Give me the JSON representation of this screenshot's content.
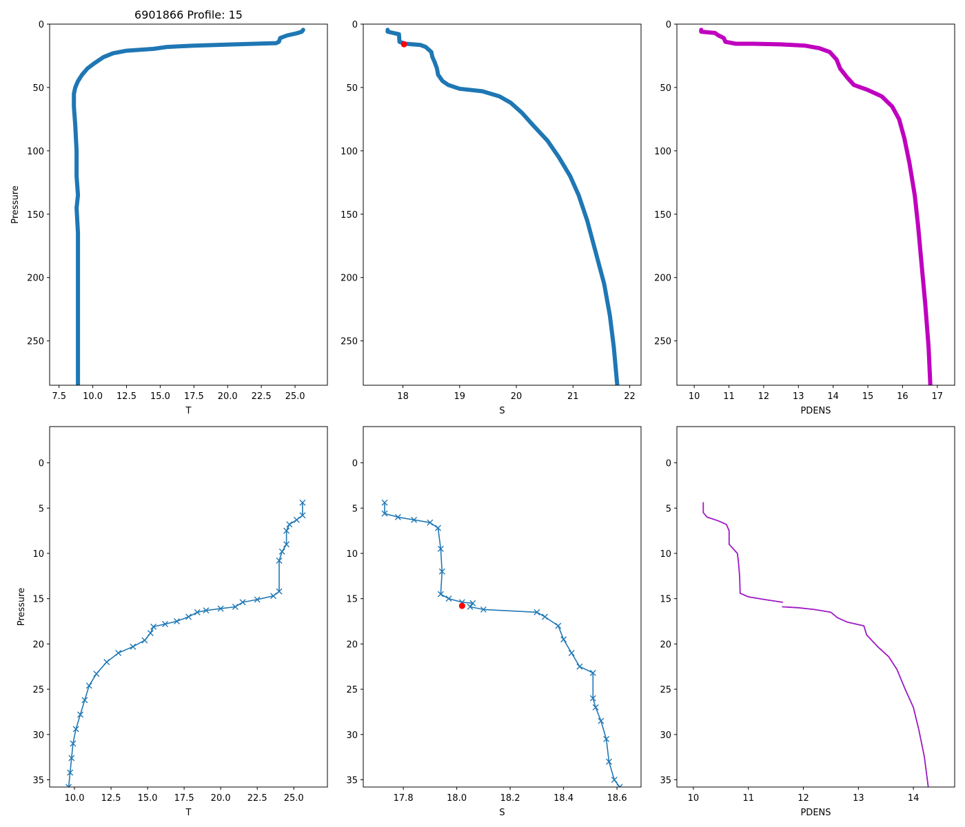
{
  "figure_title": "6901866 Profile: 15",
  "colors": {
    "series": "#1f77b4",
    "pdens": "#bf00bf",
    "pdens_fit": "#5a45c8",
    "marker": "#ff0000",
    "axes": "#000000"
  },
  "chart_data": [
    {
      "type": "line",
      "xlabel": "T",
      "ylabel": "Pressure",
      "title": "6901866 Profile: 15",
      "xlim": [
        6.8,
        27.4
      ],
      "ylim": [
        285,
        0
      ],
      "xticks": [
        7.5,
        10.0,
        12.5,
        15.0,
        17.5,
        20.0,
        22.5,
        25.0
      ],
      "xticklabels": [
        "7.5",
        "10.0",
        "12.5",
        "15.0",
        "17.5",
        "20.0",
        "22.5",
        "25.0"
      ],
      "yticks": [
        0,
        50,
        100,
        150,
        200,
        250
      ],
      "yticklabels": [
        "0",
        "50",
        "100",
        "150",
        "200",
        "250"
      ],
      "series": [
        {
          "name": "T",
          "style": "x-line",
          "color": "#1f77b4",
          "width": 6,
          "points": [
            [
              25.6,
              4.5
            ],
            [
              25.5,
              6
            ],
            [
              25.2,
              7
            ],
            [
              24.4,
              9
            ],
            [
              23.9,
              11
            ],
            [
              23.8,
              14
            ],
            [
              23.6,
              15
            ],
            [
              22,
              15.5
            ],
            [
              20.5,
              16
            ],
            [
              17.5,
              17
            ],
            [
              15.5,
              18
            ],
            [
              14.5,
              19.5
            ],
            [
              12.5,
              21
            ],
            [
              11.5,
              23
            ],
            [
              10.8,
              26
            ],
            [
              10.1,
              31
            ],
            [
              9.6,
              35
            ],
            [
              9.2,
              40
            ],
            [
              8.9,
              45
            ],
            [
              8.7,
              50
            ],
            [
              8.6,
              55
            ],
            [
              8.6,
              65
            ],
            [
              8.7,
              80
            ],
            [
              8.8,
              100
            ],
            [
              8.8,
              120
            ],
            [
              8.9,
              135
            ],
            [
              8.8,
              145
            ],
            [
              8.9,
              165
            ],
            [
              8.9,
              200
            ],
            [
              8.9,
              250
            ],
            [
              8.9,
              285
            ]
          ]
        }
      ]
    },
    {
      "type": "line",
      "xlabel": "S",
      "ylabel": "",
      "xlim": [
        17.3,
        22.2
      ],
      "ylim": [
        285,
        0
      ],
      "xticks": [
        18,
        19,
        20,
        21,
        22
      ],
      "xticklabels": [
        "18",
        "19",
        "20",
        "21",
        "22"
      ],
      "yticks": [
        0,
        50,
        100,
        150,
        200,
        250
      ],
      "yticklabels": [
        "0",
        "50",
        "100",
        "150",
        "200",
        "250"
      ],
      "series": [
        {
          "name": "S",
          "style": "x-line",
          "color": "#1f77b4",
          "width": 6,
          "points": [
            [
              17.73,
              4.5
            ],
            [
              17.73,
              6
            ],
            [
              17.93,
              8
            ],
            [
              17.94,
              14
            ],
            [
              18.05,
              15.5
            ],
            [
              18.31,
              16.5
            ],
            [
              18.4,
              18
            ],
            [
              18.5,
              22
            ],
            [
              18.52,
              26
            ],
            [
              18.56,
              30
            ],
            [
              18.6,
              35
            ],
            [
              18.62,
              40
            ],
            [
              18.7,
              45
            ],
            [
              18.8,
              48
            ],
            [
              19,
              51
            ],
            [
              19.4,
              53
            ],
            [
              19.7,
              57
            ],
            [
              19.9,
              62
            ],
            [
              20.1,
              70
            ],
            [
              20.3,
              80
            ],
            [
              20.55,
              92
            ],
            [
              20.75,
              105
            ],
            [
              20.95,
              120
            ],
            [
              21.1,
              135
            ],
            [
              21.25,
              155
            ],
            [
              21.4,
              180
            ],
            [
              21.55,
              205
            ],
            [
              21.65,
              230
            ],
            [
              21.72,
              255
            ],
            [
              21.78,
              285
            ]
          ]
        }
      ],
      "marker": {
        "x": 18.02,
        "y": 15.9,
        "label": "dot"
      }
    },
    {
      "type": "line",
      "xlabel": "PDENS",
      "ylabel": "",
      "xlim": [
        9.5,
        17.5
      ],
      "ylim": [
        285,
        0
      ],
      "xticks": [
        10,
        11,
        12,
        13,
        14,
        15,
        16,
        17
      ],
      "xticklabels": [
        "10",
        "11",
        "12",
        "13",
        "14",
        "15",
        "16",
        "17"
      ],
      "yticks": [
        0,
        50,
        100,
        150,
        200,
        250
      ],
      "yticklabels": [
        "0",
        "50",
        "100",
        "150",
        "200",
        "250"
      ],
      "series": [
        {
          "name": "PDENS",
          "style": "triangle-line",
          "color": "#bf00bf",
          "width": 6,
          "points": [
            [
              10.2,
              4.5
            ],
            [
              10.2,
              6
            ],
            [
              10.6,
              7
            ],
            [
              10.7,
              9
            ],
            [
              10.85,
              11
            ],
            [
              10.9,
              14
            ],
            [
              11.2,
              15.5
            ],
            [
              11.7,
              15.5
            ],
            [
              12.5,
              16
            ],
            [
              13.2,
              17
            ],
            [
              13.6,
              19
            ],
            [
              13.9,
              22
            ],
            [
              14.1,
              28
            ],
            [
              14.2,
              35
            ],
            [
              14.4,
              42
            ],
            [
              14.6,
              48
            ],
            [
              15,
              52
            ],
            [
              15.4,
              57
            ],
            [
              15.7,
              65
            ],
            [
              15.9,
              75
            ],
            [
              16.05,
              90
            ],
            [
              16.2,
              110
            ],
            [
              16.35,
              135
            ],
            [
              16.45,
              160
            ],
            [
              16.55,
              190
            ],
            [
              16.65,
              220
            ],
            [
              16.75,
              255
            ],
            [
              16.8,
              285
            ]
          ]
        }
      ]
    },
    {
      "type": "line",
      "xlabel": "T",
      "ylabel": "Pressure",
      "xlim": [
        8.3,
        27.3
      ],
      "ylim": [
        35.8,
        -4.0
      ],
      "xticks": [
        10.0,
        12.5,
        15.0,
        17.5,
        20.0,
        22.5,
        25.0
      ],
      "xticklabels": [
        "10.0",
        "12.5",
        "15.0",
        "17.5",
        "20.0",
        "22.5",
        "25.0"
      ],
      "yticks": [
        0,
        5,
        10,
        15,
        20,
        25,
        30,
        35
      ],
      "yticklabels": [
        "0",
        "5",
        "10",
        "15",
        "20",
        "25",
        "30",
        "35"
      ],
      "series": [
        {
          "name": "T",
          "style": "x-line",
          "color": "#1f77b4",
          "width": 1.6,
          "points": [
            [
              25.6,
              4.4
            ],
            [
              25.6,
              5.8
            ],
            [
              25.2,
              6.3
            ],
            [
              24.7,
              6.8
            ],
            [
              24.5,
              7.5
            ],
            [
              24.5,
              9
            ],
            [
              24.2,
              9.8
            ],
            [
              24.0,
              10.8
            ],
            [
              24.0,
              14.2
            ],
            [
              23.6,
              14.7
            ],
            [
              22.5,
              15.1
            ],
            [
              21.5,
              15.4
            ],
            [
              21.0,
              15.9
            ],
            [
              20.0,
              16.1
            ],
            [
              19.0,
              16.3
            ],
            [
              18.4,
              16.5
            ],
            [
              17.8,
              17.0
            ],
            [
              17.0,
              17.5
            ],
            [
              16.2,
              17.8
            ],
            [
              15.4,
              18.1
            ],
            [
              15.2,
              18.8
            ],
            [
              14.8,
              19.6
            ],
            [
              14.0,
              20.3
            ],
            [
              13.0,
              21.0
            ],
            [
              12.2,
              22.0
            ],
            [
              11.5,
              23.3
            ],
            [
              11.0,
              24.6
            ],
            [
              10.7,
              26.2
            ],
            [
              10.4,
              27.8
            ],
            [
              10.1,
              29.4
            ],
            [
              9.9,
              31.0
            ],
            [
              9.8,
              32.6
            ],
            [
              9.7,
              34.2
            ],
            [
              9.6,
              35.8
            ]
          ]
        }
      ]
    },
    {
      "type": "line",
      "xlabel": "S",
      "ylabel": "",
      "xlim": [
        17.65,
        18.69
      ],
      "ylim": [
        35.8,
        -4.0
      ],
      "xticks": [
        17.8,
        18.0,
        18.2,
        18.4,
        18.6
      ],
      "xticklabels": [
        "17.8",
        "18.0",
        "18.2",
        "18.4",
        "18.6"
      ],
      "yticks": [
        0,
        5,
        10,
        15,
        20,
        25,
        30,
        35
      ],
      "yticklabels": [
        "0",
        "5",
        "10",
        "15",
        "20",
        "25",
        "30",
        "35"
      ],
      "series": [
        {
          "name": "S",
          "style": "x-line",
          "color": "#1f77b4",
          "width": 1.6,
          "points": [
            [
              17.73,
              4.4
            ],
            [
              17.73,
              5.6
            ],
            [
              17.78,
              6.0
            ],
            [
              17.84,
              6.3
            ],
            [
              17.9,
              6.6
            ],
            [
              17.93,
              7.2
            ],
            [
              17.94,
              9.5
            ],
            [
              17.945,
              12.0
            ],
            [
              17.94,
              14.5
            ],
            [
              17.97,
              15.0
            ],
            [
              18.02,
              15.4
            ],
            [
              18.06,
              15.5
            ],
            [
              18.05,
              15.9
            ],
            [
              18.1,
              16.2
            ],
            [
              18.3,
              16.5
            ],
            [
              18.33,
              17.0
            ],
            [
              18.38,
              18.0
            ],
            [
              18.4,
              19.5
            ],
            [
              18.43,
              21.0
            ],
            [
              18.46,
              22.5
            ],
            [
              18.51,
              23.2
            ],
            [
              18.51,
              26.0
            ],
            [
              18.52,
              27.0
            ],
            [
              18.54,
              28.5
            ],
            [
              18.56,
              30.5
            ],
            [
              18.57,
              33.0
            ],
            [
              18.59,
              35.0
            ],
            [
              18.61,
              35.8
            ]
          ]
        }
      ],
      "marker": {
        "x": 18.02,
        "y": 15.8,
        "label": "dot"
      }
    },
    {
      "type": "line",
      "xlabel": "PDENS",
      "ylabel": "",
      "xlim": [
        9.7,
        14.75
      ],
      "ylim": [
        35.8,
        -4.0
      ],
      "xticks": [
        10,
        11,
        12,
        13,
        14
      ],
      "xticklabels": [
        "10",
        "11",
        "12",
        "13",
        "14"
      ],
      "yticks": [
        0,
        5,
        10,
        15,
        20,
        25,
        30,
        35
      ],
      "yticklabels": [
        "0",
        "5",
        "10",
        "15",
        "20",
        "25",
        "30",
        "35"
      ],
      "series": [
        {
          "name": "PDENS",
          "style": "line",
          "color": "#bf00bf",
          "width": 1.8,
          "points": [
            [
              10.18,
              4.4
            ],
            [
              10.18,
              5.5
            ],
            [
              10.25,
              6.0
            ],
            [
              10.45,
              6.4
            ],
            [
              10.6,
              6.8
            ],
            [
              10.65,
              7.5
            ],
            [
              10.65,
              9.0
            ],
            [
              10.8,
              10.0
            ],
            [
              10.82,
              11.0
            ],
            [
              10.84,
              12.5
            ],
            [
              10.85,
              14.4
            ],
            [
              11.0,
              14.8
            ],
            [
              11.3,
              15.1
            ],
            [
              11.62,
              15.4
            ]
          ]
        },
        {
          "name": "PDENS",
          "style": "line",
          "color": "#bf00bf",
          "width": 1.8,
          "points": [
            [
              11.62,
              15.9
            ],
            [
              11.9,
              16.0
            ],
            [
              12.2,
              16.2
            ],
            [
              12.5,
              16.5
            ],
            [
              12.62,
              17.1
            ],
            [
              12.8,
              17.6
            ],
            [
              13.1,
              18.0
            ],
            [
              13.15,
              19.0
            ],
            [
              13.35,
              20.3
            ],
            [
              13.55,
              21.4
            ],
            [
              13.7,
              22.8
            ],
            [
              13.85,
              25.0
            ],
            [
              14.0,
              27.0
            ],
            [
              14.1,
              29.5
            ],
            [
              14.2,
              32.5
            ],
            [
              14.27,
              35.8
            ]
          ]
        }
      ]
    }
  ]
}
